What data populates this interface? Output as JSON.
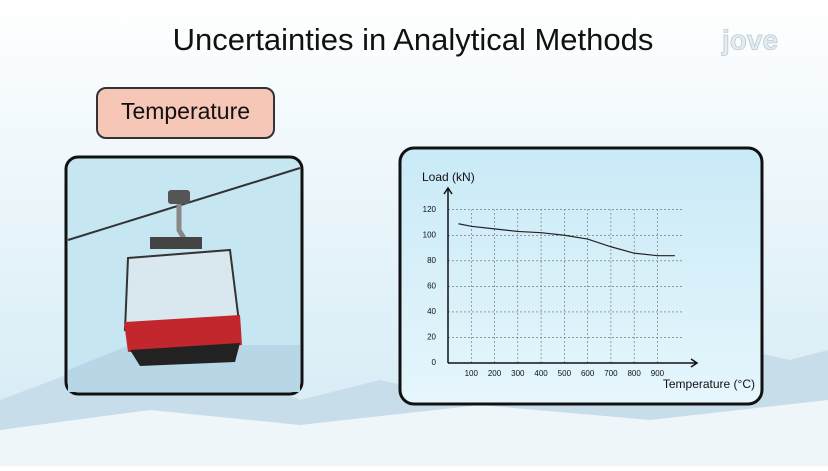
{
  "header": {
    "title": "Uncertainties in Analytical Methods",
    "logo": "jove"
  },
  "topic": "Temperature",
  "chart_data": {
    "type": "line",
    "ylabel": "Load (kN)",
    "xlabel": "Temperature (°C)",
    "x": [
      45,
      100,
      200,
      300,
      400,
      500,
      600,
      700,
      800,
      900,
      975
    ],
    "series": [
      {
        "color": "#222222",
        "values": [
          109,
          107,
          105,
          103,
          102,
          100,
          97,
          91,
          86,
          84,
          84
        ]
      }
    ],
    "xlim": [
      0,
      1070
    ],
    "ylim": [
      0,
      137
    ],
    "xticks": [
      100,
      200,
      300,
      400,
      500,
      600,
      700,
      800,
      900
    ],
    "yticks": [
      0,
      20,
      40,
      60,
      80,
      100,
      120
    ],
    "grid": true
  }
}
